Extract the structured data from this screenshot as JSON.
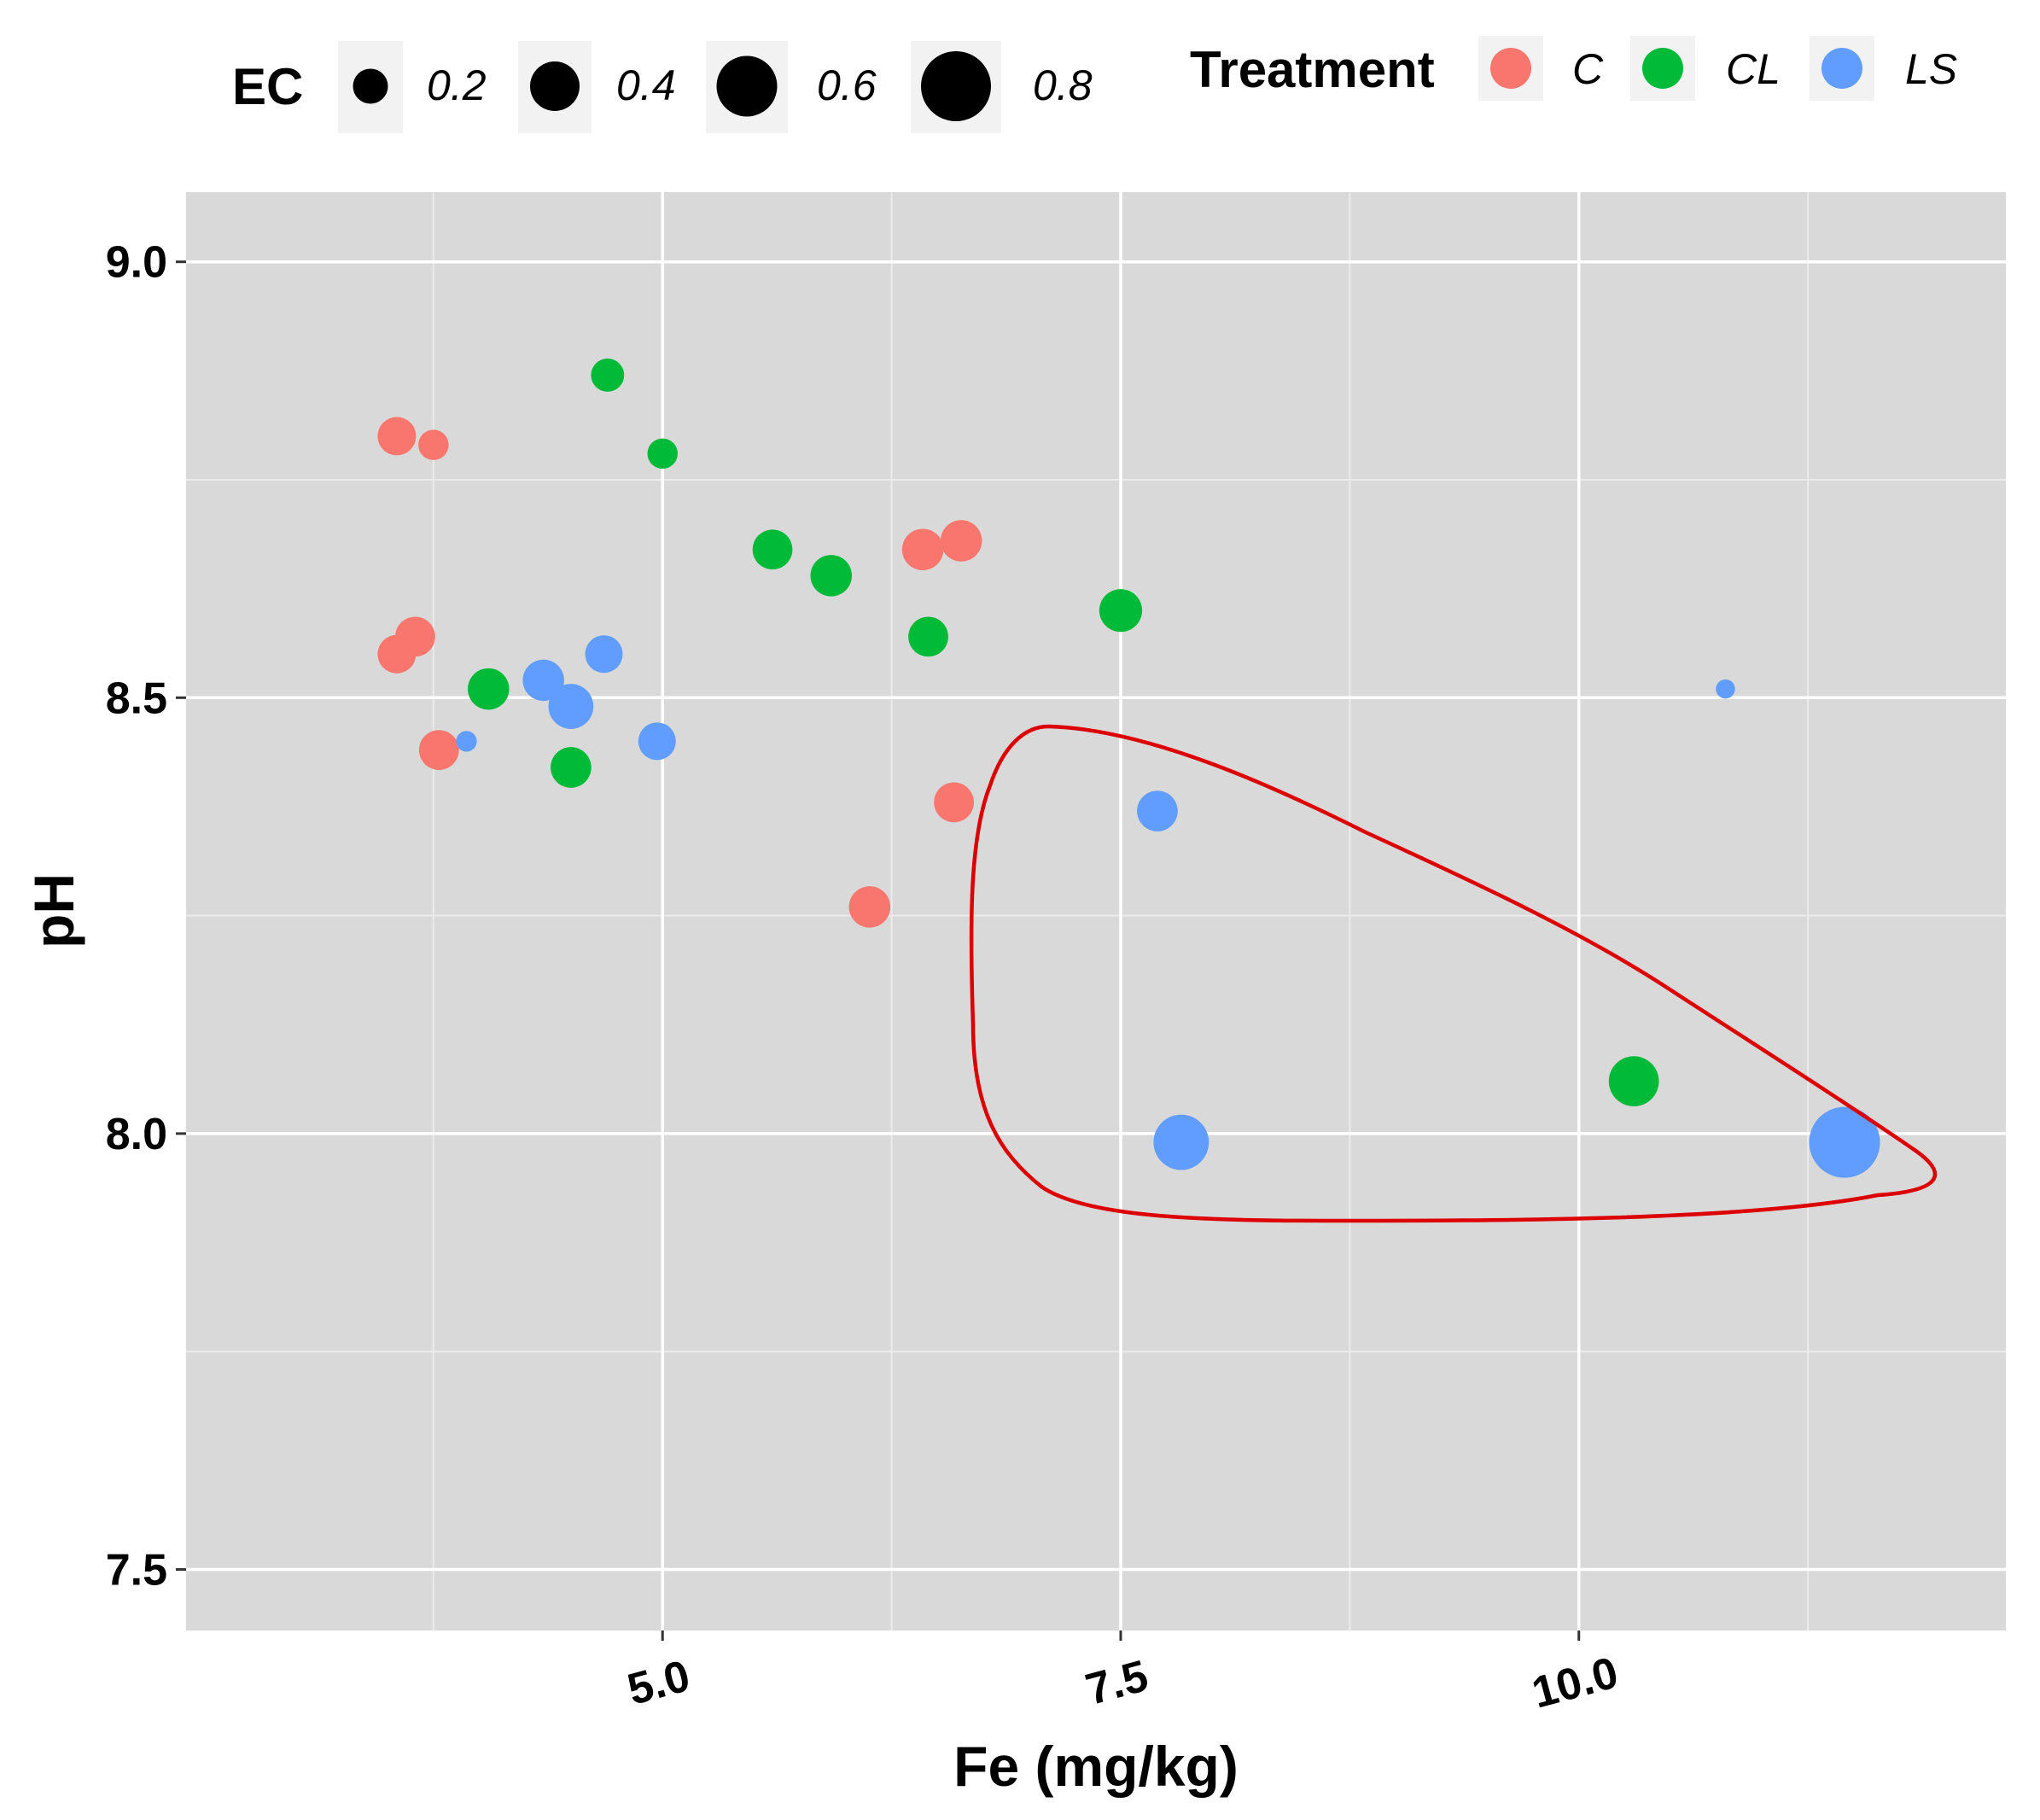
{
  "chart_data": {
    "type": "scatter",
    "title": "",
    "xlabel": "Fe (mg/kg)",
    "ylabel": "pH",
    "xlim": [
      2.4,
      12.33
    ],
    "ylim": [
      7.43,
      9.08
    ],
    "x_ticks": [
      5.0,
      7.5,
      10.0
    ],
    "x_tick_labels": [
      "5.0",
      "7.5",
      "10.0"
    ],
    "x_minor_ticks": [
      3.75,
      6.25,
      8.75,
      11.25
    ],
    "y_ticks": [
      7.5,
      8.0,
      8.5,
      9.0
    ],
    "y_tick_labels": [
      "7.5",
      "8.0",
      "8.5",
      "9.0"
    ],
    "y_minor_ticks": [
      7.75,
      8.25,
      8.75
    ],
    "grid": true,
    "size_legend": {
      "title": "EC",
      "values": [
        0.2,
        0.4,
        0.6,
        0.8
      ],
      "labels": [
        "0.2",
        "0.4",
        "0.6",
        "0.8"
      ]
    },
    "color_legend": {
      "title": "Treatment",
      "labels": [
        "C",
        "CL",
        "LS"
      ],
      "colors": [
        "#F8766D",
        "#00BA38",
        "#619CFF"
      ]
    },
    "highlight": {
      "shape": "closed-curve",
      "color": "#DD0000",
      "description": "circled region of high Fe, low pH points"
    },
    "series": [
      {
        "name": "C",
        "color": "#F8766D",
        "points": [
          {
            "x": 3.55,
            "y": 8.8,
            "ec": 0.24
          },
          {
            "x": 3.75,
            "y": 8.79,
            "ec": 0.15
          },
          {
            "x": 3.55,
            "y": 8.55,
            "ec": 0.24
          },
          {
            "x": 3.65,
            "y": 8.57,
            "ec": 0.26
          },
          {
            "x": 3.78,
            "y": 8.44,
            "ec": 0.26
          },
          {
            "x": 6.42,
            "y": 8.67,
            "ec": 0.28
          },
          {
            "x": 6.63,
            "y": 8.68,
            "ec": 0.28
          },
          {
            "x": 6.59,
            "y": 8.38,
            "ec": 0.26
          },
          {
            "x": 6.13,
            "y": 8.26,
            "ec": 0.28
          }
        ]
      },
      {
        "name": "CL",
        "color": "#00BA38",
        "points": [
          {
            "x": 4.7,
            "y": 8.87,
            "ec": 0.18
          },
          {
            "x": 5.0,
            "y": 8.78,
            "ec": 0.15
          },
          {
            "x": 5.6,
            "y": 8.67,
            "ec": 0.26
          },
          {
            "x": 5.92,
            "y": 8.64,
            "ec": 0.28
          },
          {
            "x": 6.45,
            "y": 8.57,
            "ec": 0.26
          },
          {
            "x": 7.5,
            "y": 8.6,
            "ec": 0.3
          },
          {
            "x": 4.05,
            "y": 8.51,
            "ec": 0.28
          },
          {
            "x": 4.5,
            "y": 8.42,
            "ec": 0.27
          },
          {
            "x": 10.3,
            "y": 8.06,
            "ec": 0.41
          }
        ]
      },
      {
        "name": "LS",
        "color": "#619CFF",
        "points": [
          {
            "x": 4.35,
            "y": 8.52,
            "ec": 0.28
          },
          {
            "x": 4.5,
            "y": 8.49,
            "ec": 0.33
          },
          {
            "x": 4.68,
            "y": 8.55,
            "ec": 0.23
          },
          {
            "x": 4.97,
            "y": 8.45,
            "ec": 0.23
          },
          {
            "x": 3.93,
            "y": 8.45,
            "ec": 0.07
          },
          {
            "x": 7.7,
            "y": 8.37,
            "ec": 0.27
          },
          {
            "x": 7.83,
            "y": 7.99,
            "ec": 0.5
          },
          {
            "x": 11.45,
            "y": 7.99,
            "ec": 0.82
          },
          {
            "x": 10.8,
            "y": 8.51,
            "ec": 0.06
          }
        ]
      }
    ]
  }
}
